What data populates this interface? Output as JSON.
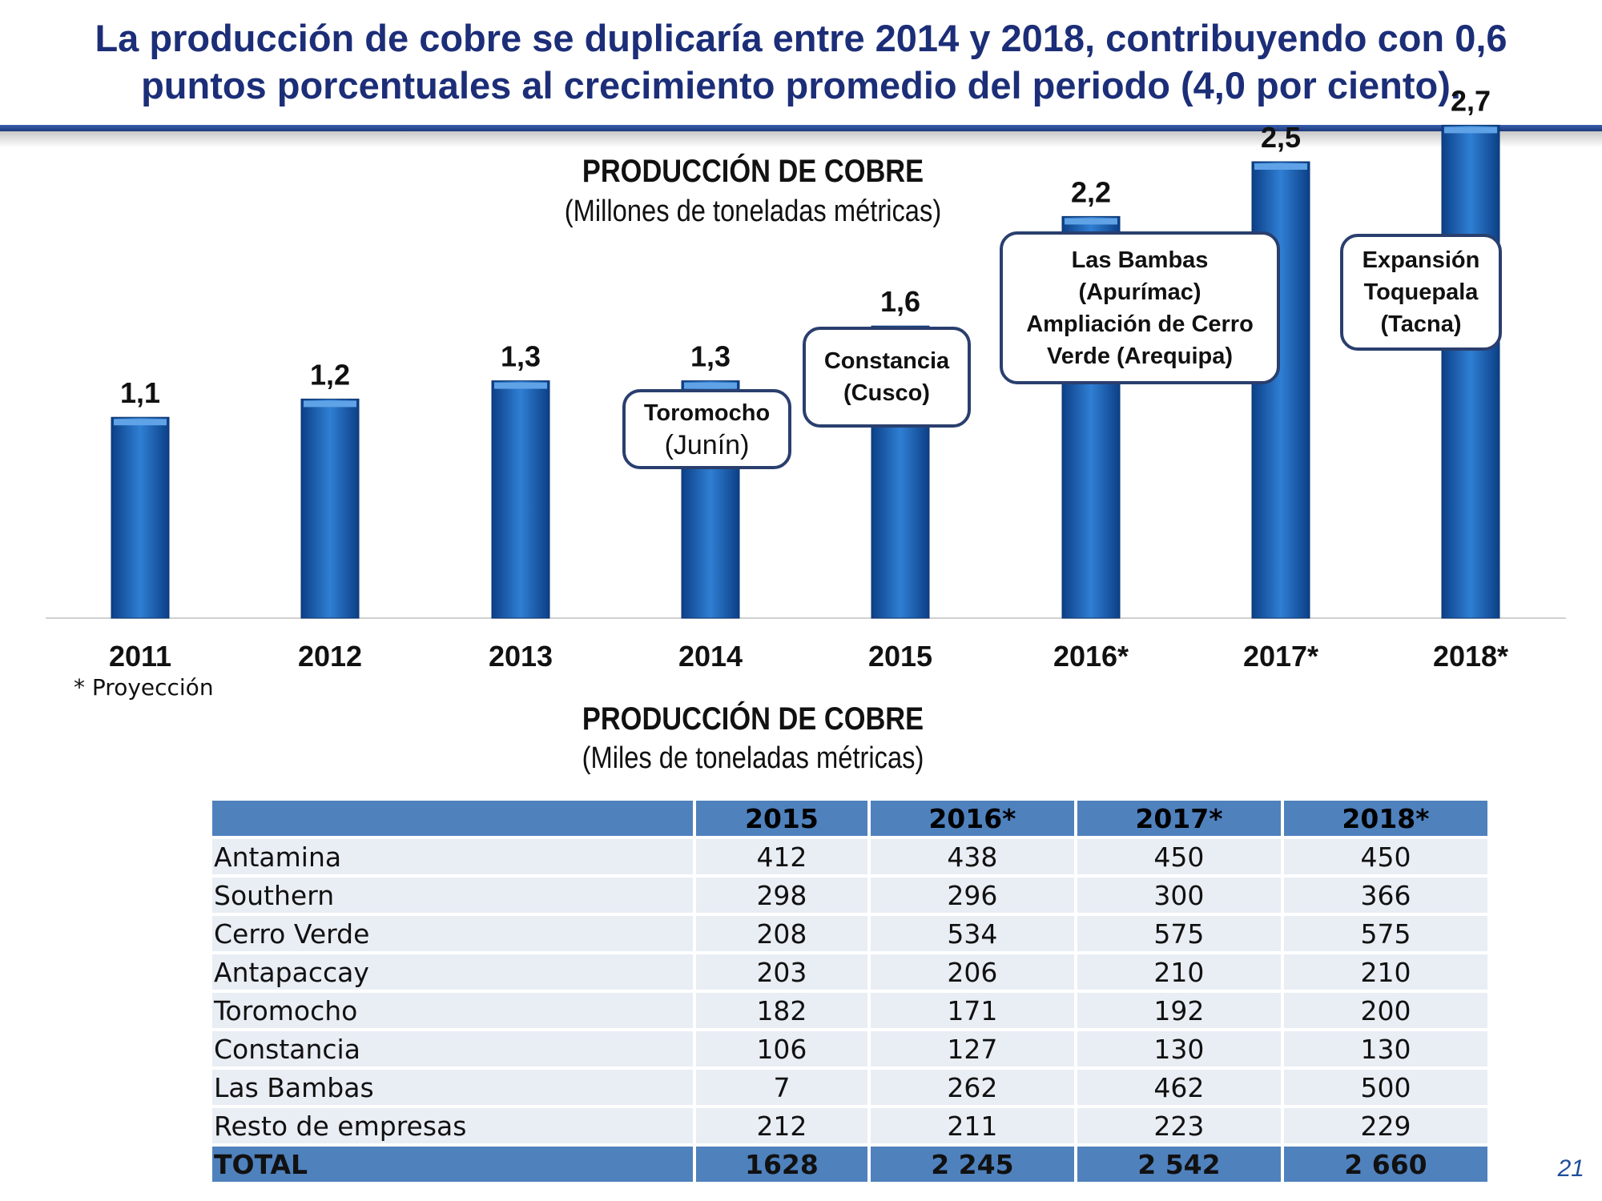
{
  "header": {
    "line1": "La producción de cobre se duplicaría entre 2014 y 2018, contribuyendo con 0,6",
    "line2": "puntos porcentuales al crecimiento promedio del periodo (4,0 por ciento)."
  },
  "chart_data": {
    "type": "bar",
    "title": "PRODUCCIÓN DE COBRE",
    "subtitle": "(Millones de toneladas métricas)",
    "categories": [
      "2011",
      "2012",
      "2013",
      "2014",
      "2015",
      "2016*",
      "2017*",
      "2018*"
    ],
    "values": [
      1.1,
      1.2,
      1.3,
      1.3,
      1.6,
      2.2,
      2.5,
      2.7
    ],
    "value_labels": [
      "1,1",
      "1,2",
      "1,3",
      "1,3",
      "1,6",
      "2,2",
      "2,5",
      "2,7"
    ],
    "color": "#1f6fc5",
    "grid": false,
    "annotations": [
      {
        "category": "2014",
        "lines": [
          "Toromocho",
          "(Junín)"
        ]
      },
      {
        "category": "2015",
        "lines": [
          "Constancia",
          "(Cusco)"
        ]
      },
      {
        "category": "2016*",
        "lines": [
          "Las Bambas",
          "(Apurímac)",
          "Ampliación de Cerro",
          "Verde (Arequipa)"
        ]
      },
      {
        "category": "2018*",
        "lines": [
          "Expansión",
          "Toquepala",
          "(Tacna)"
        ]
      }
    ]
  },
  "note": "* Proyección",
  "table": {
    "title": "PRODUCCIÓN DE COBRE",
    "subtitle": "(Miles de toneladas métricas)",
    "columns": [
      "",
      "2015",
      "2016*",
      "2017*",
      "2018*"
    ],
    "rows": [
      [
        "Antamina",
        "412",
        "438",
        "450",
        "450"
      ],
      [
        "Southern",
        "298",
        "296",
        "300",
        "366"
      ],
      [
        "Cerro Verde",
        "208",
        "534",
        "575",
        "575"
      ],
      [
        "Antapaccay",
        "203",
        "206",
        "210",
        "210"
      ],
      [
        "Toromocho",
        "182",
        "171",
        "192",
        "200"
      ],
      [
        "Constancia",
        "106",
        "127",
        "130",
        "130"
      ],
      [
        "Las Bambas",
        "7",
        "262",
        "462",
        "500"
      ],
      [
        "Resto de empresas",
        "212",
        "211",
        "223",
        "229"
      ]
    ],
    "total": [
      "TOTAL",
      "1628",
      "2 245",
      "2 542",
      "2 660"
    ]
  },
  "page_number": "21"
}
